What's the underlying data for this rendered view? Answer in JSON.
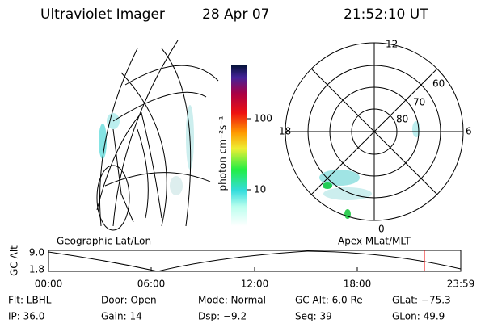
{
  "header": {
    "title": "Ultraviolet Imager",
    "date": "28 Apr 07",
    "time": "21:52:10 UT"
  },
  "colorbar": {
    "label": "photon cm⁻²s⁻¹",
    "ticks": [
      "100",
      "10"
    ]
  },
  "map": {
    "label": "Geographic Lat/Lon"
  },
  "polar": {
    "label": "Apex MLat/MLT",
    "mlt_labels": [
      "12",
      "18",
      "6",
      "0"
    ],
    "mlat_labels": [
      "60",
      "70",
      "80"
    ]
  },
  "altitude": {
    "label": "GC Alt",
    "yticks": [
      "9.0",
      "1.8"
    ],
    "xticks": [
      "00:00",
      "06:00",
      "12:00",
      "18:00",
      "23:59"
    ]
  },
  "footer": {
    "rows": [
      [
        "Flt: LBHL",
        "Door: Open",
        "Mode: Normal",
        "GC Alt: 6.0 Re",
        "GLat: −75.3"
      ],
      [
        "IP: 36.0",
        "Gain: 14",
        "Dsp:   −9.2",
        "Seq: 39",
        "GLon:  49.9"
      ]
    ]
  }
}
